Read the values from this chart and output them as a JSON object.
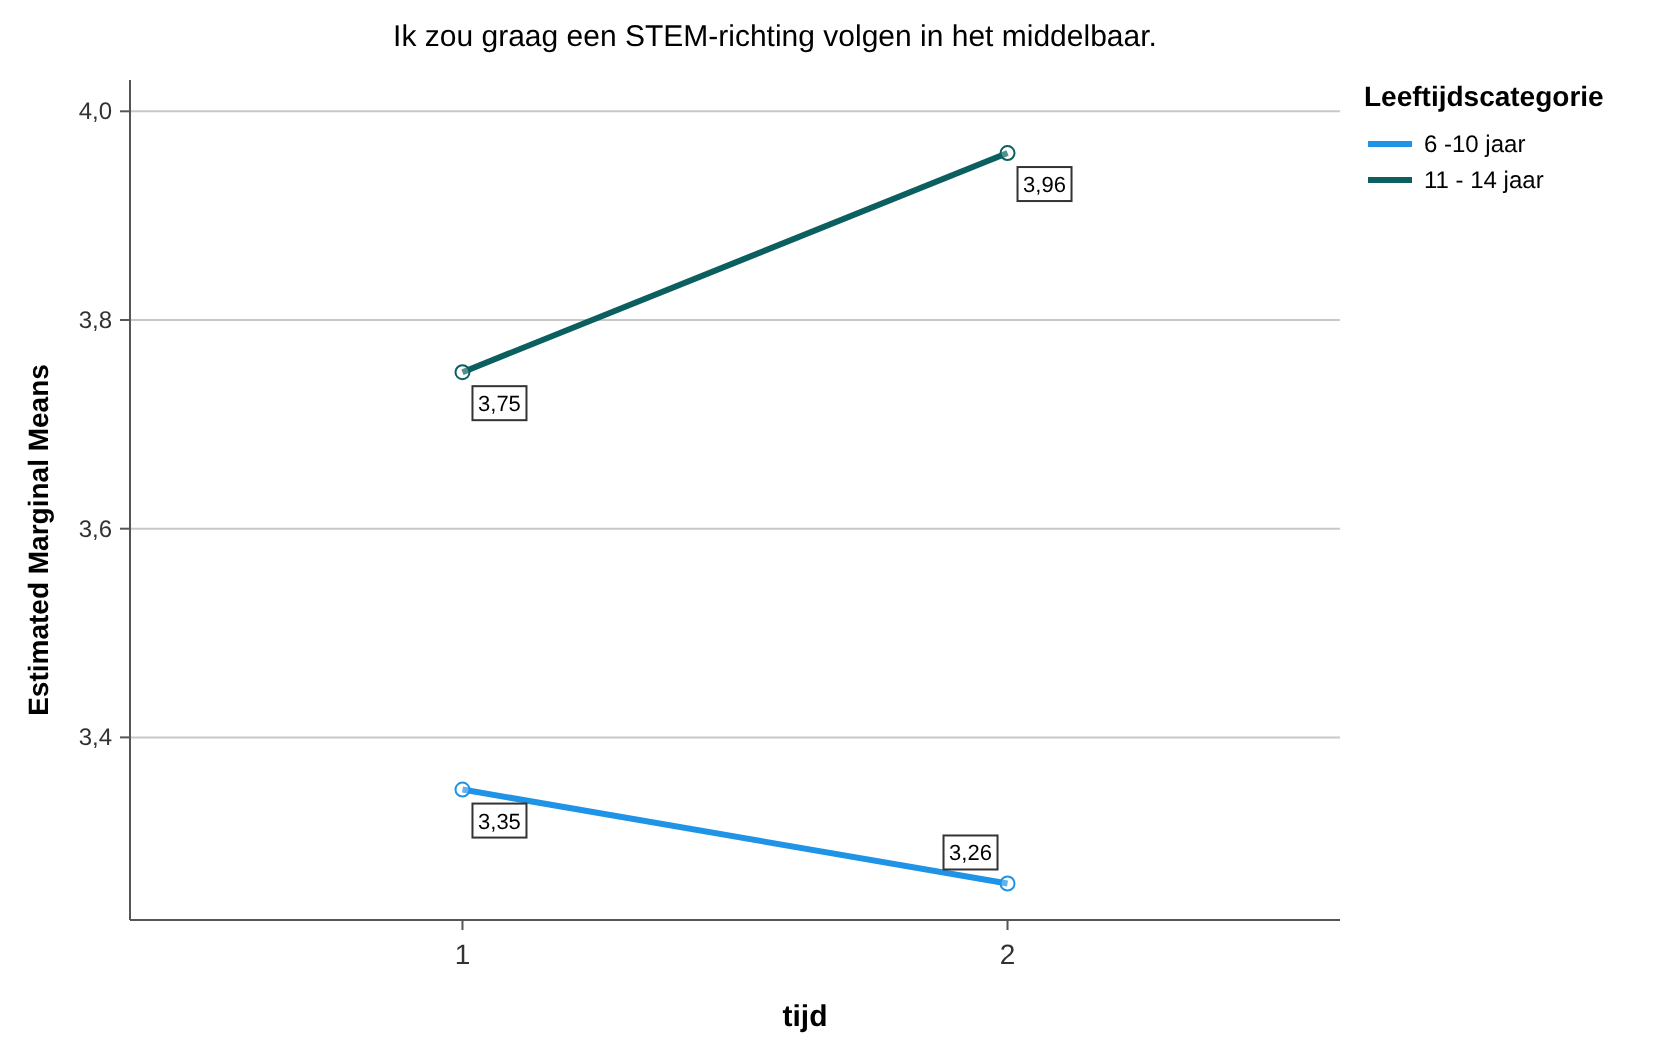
{
  "chart_data": {
    "type": "line",
    "title": "Ik zou graag een STEM-richting volgen in het middelbaar.",
    "xlabel": "tijd",
    "ylabel": "Estimated Marginal Means",
    "legend_title": "Leeftijdscategorie",
    "categories": [
      "1",
      "2"
    ],
    "series": [
      {
        "name": "6 -10 jaar",
        "color": "#1f93e6",
        "values": [
          3.35,
          3.26
        ],
        "value_labels": [
          "3,35",
          "3,26"
        ]
      },
      {
        "name": "11 - 14 jaar",
        "color": "#0b5f5f",
        "values": [
          3.75,
          3.96
        ],
        "value_labels": [
          "3,75",
          "3,96"
        ]
      }
    ],
    "ylim": [
      3.225,
      4.03
    ],
    "yticks": [
      {
        "value": 3.4,
        "label": "3,4"
      },
      {
        "value": 3.6,
        "label": "3,6"
      },
      {
        "value": 3.8,
        "label": "3,8"
      },
      {
        "value": 4.0,
        "label": "4,0"
      }
    ],
    "grid": "y",
    "legend": "top right",
    "marker": "circle",
    "line_style": "solid"
  }
}
